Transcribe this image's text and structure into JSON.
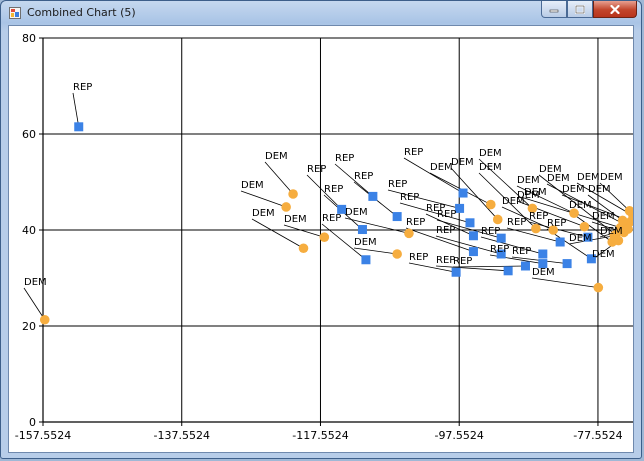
{
  "window": {
    "title": "Combined Chart (5)"
  },
  "chart_data": {
    "type": "scatter",
    "title": "",
    "xlabel": "",
    "ylabel": "",
    "xlim": [
      -157.5524,
      -72.5
    ],
    "ylim": [
      0,
      80
    ],
    "x_ticks": [
      -157.5524,
      -137.5524,
      -117.5524,
      -97.5524,
      -77.5524
    ],
    "x_tick_labels": [
      "-157.5524",
      "-137.5524",
      "-117.5524",
      "-97.5524",
      "-77.5524"
    ],
    "y_ticks": [
      0,
      20,
      40,
      60,
      80
    ],
    "y_tick_labels": [
      "0",
      "20",
      "40",
      "60",
      "80"
    ],
    "grid": true,
    "legend": "none",
    "colors": {
      "REP": "#3b82e6",
      "DEM": "#f6ad3f"
    },
    "series": [
      {
        "marker": "square",
        "color": "#3b82e6",
        "points": [
          {
            "x": -152.4,
            "y": 61.5,
            "label": "REP",
            "lx": 71,
            "ly": 89
          },
          {
            "x": -114.5,
            "y": 44.3,
            "label": "REP",
            "lx": 305,
            "ly": 171
          },
          {
            "x": -110.0,
            "y": 47.0,
            "label": "REP",
            "lx": 333,
            "ly": 160
          },
          {
            "x": -111.5,
            "y": 40.1,
            "label": "REP",
            "lx": 322,
            "ly": 191
          },
          {
            "x": -111.0,
            "y": 33.8,
            "label": "REP",
            "lx": 320,
            "ly": 220
          },
          {
            "x": -106.5,
            "y": 42.8,
            "label": "REP",
            "lx": 352,
            "ly": 178
          },
          {
            "x": -97.0,
            "y": 47.7,
            "label": "REP",
            "lx": 402,
            "ly": 154
          },
          {
            "x": -97.5,
            "y": 44.5,
            "label": "REP",
            "lx": 386,
            "ly": 186
          },
          {
            "x": -96.0,
            "y": 41.5,
            "label": "REP",
            "lx": 398,
            "ly": 199
          },
          {
            "x": -95.5,
            "y": 38.8,
            "label": "REP",
            "lx": 424,
            "ly": 210
          },
          {
            "x": -95.5,
            "y": 35.5,
            "label": "REP",
            "lx": 404,
            "ly": 224
          },
          {
            "x": -98.0,
            "y": 31.2,
            "label": "REP",
            "lx": 407,
            "ly": 259
          },
          {
            "x": -91.5,
            "y": 38.3,
            "label": "REP",
            "lx": 435,
            "ly": 216
          },
          {
            "x": -91.5,
            "y": 35.0,
            "label": "REP",
            "lx": 434,
            "ly": 232
          },
          {
            "x": -90.5,
            "y": 31.5,
            "label": "REP",
            "lx": 434,
            "ly": 262
          },
          {
            "x": -88.0,
            "y": 32.5,
            "label": "REP",
            "lx": 451,
            "ly": 263
          },
          {
            "x": -85.5,
            "y": 35.0,
            "label": "REP",
            "lx": 479,
            "ly": 233
          },
          {
            "x": -85.5,
            "y": 33.0,
            "label": "REP",
            "lx": 488,
            "ly": 251
          },
          {
            "x": -83.0,
            "y": 37.5,
            "label": "REP",
            "lx": 505,
            "ly": 224
          },
          {
            "x": -82.0,
            "y": 33.0,
            "label": "REP",
            "lx": 510,
            "ly": 253
          },
          {
            "x": -79.0,
            "y": 38.5,
            "label": "REP",
            "lx": 527,
            "ly": 218
          },
          {
            "x": -78.5,
            "y": 34.0,
            "label": "REP",
            "lx": 545,
            "ly": 225
          }
        ]
      },
      {
        "marker": "circle",
        "color": "#f6ad3f",
        "points": [
          {
            "x": -157.3,
            "y": 21.3,
            "label": "DEM",
            "lx": 22,
            "ly": 284
          },
          {
            "x": -121.5,
            "y": 47.5,
            "label": "DEM",
            "lx": 263,
            "ly": 158
          },
          {
            "x": -122.5,
            "y": 44.8,
            "label": "DEM",
            "lx": 239,
            "ly": 187
          },
          {
            "x": -120.0,
            "y": 36.2,
            "label": "DEM",
            "lx": 250,
            "ly": 215
          },
          {
            "x": -117.0,
            "y": 38.5,
            "label": "DEM",
            "lx": 282,
            "ly": 221
          },
          {
            "x": -104.8,
            "y": 39.3,
            "label": "DEM",
            "lx": 343,
            "ly": 214
          },
          {
            "x": -106.5,
            "y": 35.0,
            "label": "DEM",
            "lx": 352,
            "ly": 244
          },
          {
            "x": -93.0,
            "y": 45.3,
            "label": "DEM",
            "lx": 428,
            "ly": 169
          },
          {
            "x": -92.0,
            "y": 42.2,
            "label": "DEM",
            "lx": 449,
            "ly": 164
          },
          {
            "x": -87.0,
            "y": 44.5,
            "label": "DEM",
            "lx": 477,
            "ly": 155
          },
          {
            "x": -86.5,
            "y": 40.3,
            "label": "DEM",
            "lx": 477,
            "ly": 169
          },
          {
            "x": -84.0,
            "y": 40.0,
            "label": "DEM",
            "lx": 500,
            "ly": 203
          },
          {
            "x": -81.0,
            "y": 43.5,
            "label": "DEM",
            "lx": 515,
            "ly": 182
          },
          {
            "x": -79.5,
            "y": 40.7,
            "label": "DEM",
            "lx": 515,
            "ly": 197
          },
          {
            "x": -77.5,
            "y": 28.0,
            "label": "DEM",
            "lx": 530,
            "ly": 274
          },
          {
            "x": -75.0,
            "y": 39.0,
            "label": "DEM",
            "lx": 537,
            "ly": 171
          },
          {
            "x": -74.3,
            "y": 40.5,
            "label": "DEM",
            "lx": 522,
            "ly": 194
          },
          {
            "x": -73.5,
            "y": 41.0,
            "label": "DEM",
            "lx": 545,
            "ly": 180
          },
          {
            "x": -72.8,
            "y": 41.8,
            "label": "DEM",
            "lx": 560,
            "ly": 191
          },
          {
            "x": -75.5,
            "y": 37.5,
            "label": "DEM",
            "lx": 567,
            "ly": 207
          },
          {
            "x": -72.5,
            "y": 43.0,
            "label": "DEM",
            "lx": 575,
            "ly": 179
          },
          {
            "x": -73.0,
            "y": 44.0,
            "label": "DEM",
            "lx": 598,
            "ly": 179
          },
          {
            "x": -74.0,
            "y": 42.0,
            "label": "DEM",
            "lx": 586,
            "ly": 191
          },
          {
            "x": -73.8,
            "y": 39.5,
            "label": "DEM",
            "lx": 590,
            "ly": 218
          },
          {
            "x": -73.2,
            "y": 40.2,
            "label": "DEM",
            "lx": 598,
            "ly": 233
          },
          {
            "x": -75.2,
            "y": 38.8,
            "label": "DEM",
            "lx": 567,
            "ly": 240
          },
          {
            "x": -74.6,
            "y": 37.8,
            "label": "DEM",
            "lx": 590,
            "ly": 256
          }
        ]
      }
    ]
  }
}
